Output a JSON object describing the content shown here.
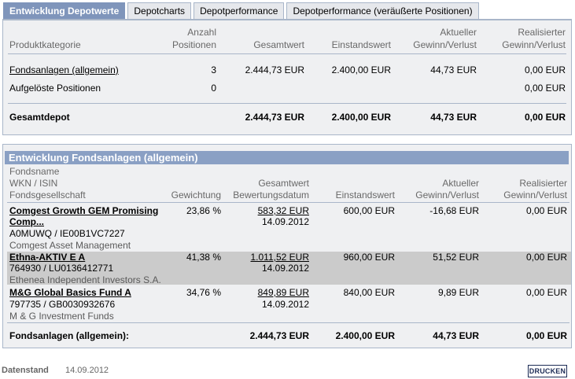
{
  "tabs": [
    "Entwicklung Depotwerte",
    "Depotcharts",
    "Depotperformance",
    "Depotperformance (veräußerte Positionen)"
  ],
  "summary": {
    "headers": {
      "kategorie": "Produktkategorie",
      "anzahl1": "Anzahl",
      "anzahl2": "Positionen",
      "gesamtwert": "Gesamtwert",
      "einstandswert": "Einstandswert",
      "aktueller1": "Aktueller",
      "aktueller2": "Gewinn/Verlust",
      "realisiert1": "Realisierter",
      "realisiert2": "Gewinn/Verlust"
    },
    "rows": [
      {
        "kategorie": "Fondsanlagen (allgemein)",
        "anzahl": "3",
        "gesamtwert": "2.444,73 EUR",
        "einstandswert": "2.400,00 EUR",
        "aktueller": "44,73 EUR",
        "realisiert": "0,00 EUR"
      },
      {
        "kategorie": "Aufgelöste Positionen",
        "anzahl": "0",
        "gesamtwert": "",
        "einstandswert": "",
        "aktueller": "",
        "realisiert": "0,00 EUR"
      }
    ],
    "total": {
      "label": "Gesamtdepot",
      "gesamtwert": "2.444,73 EUR",
      "einstandswert": "2.400,00 EUR",
      "aktueller": "44,73 EUR",
      "realisiert": "0,00 EUR"
    }
  },
  "funds": {
    "title": "Entwicklung Fondsanlagen (allgemein)",
    "headers": {
      "fondsname": "Fondsname",
      "wkn": "WKN / ISIN",
      "gesellschaft": "Fondsgesellschaft",
      "gewichtung": "Gewichtung",
      "gesamtwert1": "Gesamtwert",
      "gesamtwert2": "Bewertungsdatum",
      "einstandswert": "Einstandswert",
      "aktueller1": "Aktueller",
      "aktueller2": "Gewinn/Verlust",
      "realisiert1": "Realisierter",
      "realisiert2": "Gewinn/Verlust"
    },
    "rows": [
      {
        "name1": "Comgest Growth GEM Promising",
        "name2": "Comp...",
        "wkn": "A0MUWQ /  IE00B1VC7227",
        "gesellschaft": "Comgest Asset Management",
        "gewichtung": "23,86 %",
        "gesamtwert": "583,32 EUR",
        "datum": "14.09.2012",
        "einstandswert": "600,00 EUR",
        "aktueller": "-16,68 EUR",
        "realisiert": "0,00 EUR"
      },
      {
        "name1": "Ethna-AKTIV E A",
        "name2": "",
        "wkn": "764930 /  LU0136412771",
        "gesellschaft": "Ethenea Independent Investors S.A.",
        "gewichtung": "41,38 %",
        "gesamtwert": "1.011,52 EUR",
        "datum": "14.09.2012",
        "einstandswert": "960,00 EUR",
        "aktueller": "51,52 EUR",
        "realisiert": "0,00 EUR"
      },
      {
        "name1": "M&G Global Basics Fund A",
        "name2": "",
        "wkn": "797735 /  GB0030932676",
        "gesellschaft": "M & G Investment Funds",
        "gewichtung": "34,76 %",
        "gesamtwert": "849,89 EUR",
        "datum": "14.09.2012",
        "einstandswert": "840,00 EUR",
        "aktueller": "9,89 EUR",
        "realisiert": "0,00 EUR"
      }
    ],
    "total": {
      "label": "Fondsanlagen (allgemein):",
      "gesamtwert": "2.444,73 EUR",
      "einstandswert": "2.400,00 EUR",
      "aktueller": "44,73 EUR",
      "realisiert": "0,00 EUR"
    }
  },
  "footer": {
    "label": "Datenstand",
    "date": "14.09.2012",
    "print": "DRUCKEN"
  }
}
